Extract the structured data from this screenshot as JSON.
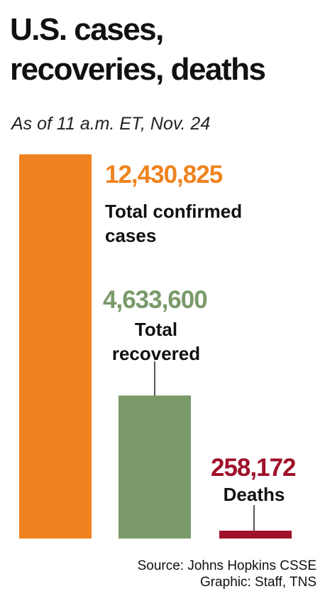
{
  "chart_data": {
    "type": "bar",
    "title": "U.S. cases, recoveries, deaths",
    "subtitle": "As of 11 a.m. ET, Nov. 24",
    "categories": [
      "Total confirmed cases",
      "Total recovered",
      "Deaths"
    ],
    "values": [
      12430825,
      4633600,
      258172
    ],
    "value_labels": [
      "12,430,825",
      "4,633,600",
      "258,172"
    ],
    "colors": [
      "#f0831f",
      "#7a9a6a",
      "#a0102a"
    ],
    "source": "Source: Johns Hopkins CSSE",
    "credit": "Graphic: Staff, TNS"
  }
}
